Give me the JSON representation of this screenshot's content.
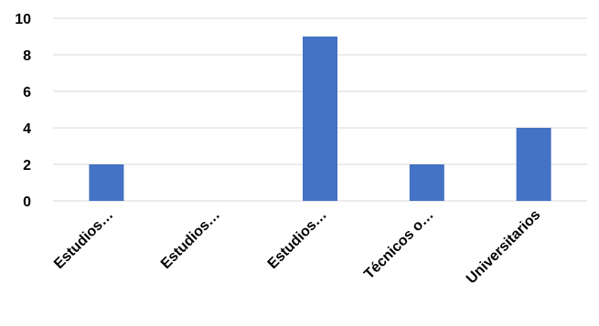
{
  "chart_data": {
    "type": "bar",
    "title": "",
    "xlabel": "",
    "ylabel": "",
    "categories": [
      "Estudios…",
      "Estudios…",
      "Estudios…",
      "Técnicos o…",
      "Universitarios"
    ],
    "values": [
      2,
      0,
      9,
      2,
      4
    ],
    "ylim": [
      0,
      10
    ],
    "yticks": [
      0,
      2,
      4,
      6,
      8,
      10
    ],
    "grid": true,
    "legend": "none",
    "bar_color": "#4472c4",
    "gridline_color": "#d9d9d9"
  }
}
